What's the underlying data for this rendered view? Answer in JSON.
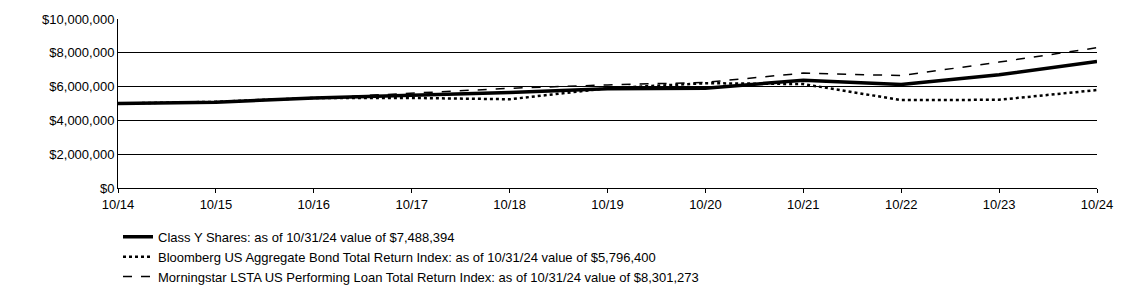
{
  "chart_data": {
    "type": "line",
    "categories": [
      "10/14",
      "10/15",
      "10/16",
      "10/17",
      "10/18",
      "10/19",
      "10/20",
      "10/21",
      "10/22",
      "10/23",
      "10/24"
    ],
    "series": [
      {
        "name": "Class Y Shares: as of 10/31/24 value of $7,488,394",
        "color": "#000000",
        "line_style": "solid",
        "values": [
          5000000,
          5080000,
          5330000,
          5480000,
          5650000,
          5870000,
          5900000,
          6380000,
          6130000,
          6700000,
          7488394
        ]
      },
      {
        "name": "Bloomberg US Aggregate Bond Total Return Index: as of 10/31/24 value of $5,796,400",
        "color": "#000000",
        "line_style": "dot",
        "values": [
          5000000,
          5100000,
          5330000,
          5330000,
          5250000,
          5900000,
          6200000,
          6150000,
          5200000,
          5220000,
          5796400
        ]
      },
      {
        "name": "Morningstar LSTA US Performing Loan Total Return Index: as of 10/31/24 value of $8,301,273",
        "color": "#000000",
        "line_style": "dash",
        "values": [
          5000000,
          5070000,
          5320000,
          5620000,
          5900000,
          6100000,
          6250000,
          6800000,
          6650000,
          7450000,
          8301273
        ]
      }
    ],
    "ylim": [
      0,
      10000000
    ],
    "yticks": [
      {
        "value": 0,
        "label": "$0"
      },
      {
        "value": 2000000,
        "label": "$2,000,000"
      },
      {
        "value": 4000000,
        "label": "$4,000,000"
      },
      {
        "value": 6000000,
        "label": "$6,000,000"
      },
      {
        "value": 8000000,
        "label": "$8,000,000"
      },
      {
        "value": 10000000,
        "label": "$10,000,000"
      }
    ],
    "grid": true,
    "legend": "bottom"
  }
}
